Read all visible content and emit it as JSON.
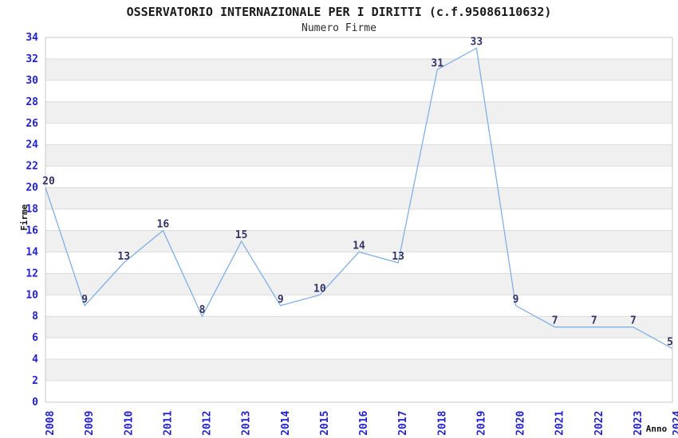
{
  "chart_data": {
    "type": "line",
    "title": "OSSERVATORIO INTERNAZIONALE PER I DIRITTI (c.f.95086110632)",
    "subtitle": "Numero Firme",
    "xlabel": "Anno",
    "ylabel": "Firme",
    "categories": [
      "2008",
      "2009",
      "2010",
      "2011",
      "2012",
      "2013",
      "2014",
      "2015",
      "2016",
      "2017",
      "2018",
      "2019",
      "2020",
      "2021",
      "2022",
      "2023",
      "2024"
    ],
    "values": [
      20,
      9,
      13,
      16,
      8,
      15,
      9,
      10,
      14,
      13,
      31,
      33,
      9,
      7,
      7,
      7,
      5
    ],
    "ylim": [
      0,
      34
    ],
    "ytick_step": 2,
    "grid": "horizontal-bands-alternating",
    "legend": "none",
    "colors": {
      "line": "#82b0e4",
      "tick_label": "#2222cc",
      "data_label": "#333366",
      "band": "#f0f0f0",
      "gridline": "#dcdcdc",
      "plot_border": "#c8c8c8",
      "background": "#ffffff"
    }
  }
}
